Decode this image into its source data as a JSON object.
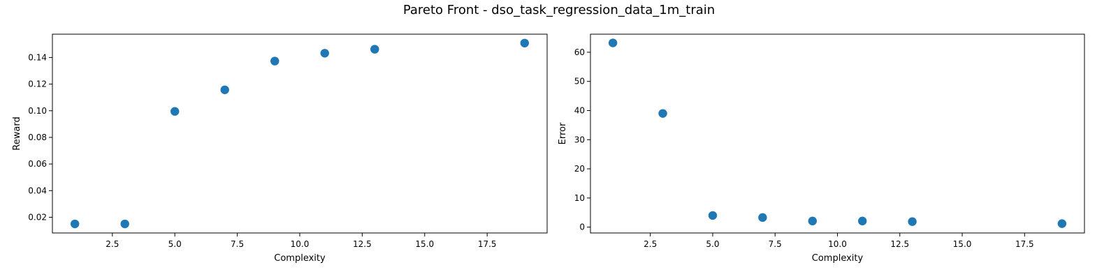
{
  "figure": {
    "title": "Pareto Front - dso_task_regression_data_1m_train"
  },
  "chart_data": [
    {
      "type": "scatter",
      "xlabel": "Complexity",
      "ylabel": "Reward",
      "xlim": [
        0.1,
        19.9
      ],
      "ylim": [
        0.0082,
        0.1575
      ],
      "xticks": [
        "2.5",
        "5.0",
        "7.5",
        "10.0",
        "12.5",
        "15.0",
        "17.5"
      ],
      "yticks": [
        "0.02",
        "0.04",
        "0.06",
        "0.08",
        "0.10",
        "0.12",
        "0.14"
      ],
      "x": [
        1,
        3,
        5,
        7,
        9,
        11,
        13,
        19
      ],
      "y": [
        0.015,
        0.015,
        0.0995,
        0.1157,
        0.1373,
        0.1432,
        0.1462,
        0.1508
      ],
      "color": "#1f77b4"
    },
    {
      "type": "scatter",
      "xlabel": "Complexity",
      "ylabel": "Error",
      "xlim": [
        0.1,
        19.9
      ],
      "ylim": [
        -2.0,
        66.2
      ],
      "xticks": [
        "2.5",
        "5.0",
        "7.5",
        "10.0",
        "12.5",
        "15.0",
        "17.5"
      ],
      "yticks": [
        "0",
        "10",
        "20",
        "30",
        "40",
        "50",
        "60"
      ],
      "x": [
        1,
        3,
        5,
        7,
        9,
        11,
        13,
        19
      ],
      "y": [
        63.2,
        39.0,
        4.0,
        3.3,
        2.1,
        2.1,
        1.9,
        1.2
      ],
      "color": "#1f77b4"
    }
  ]
}
